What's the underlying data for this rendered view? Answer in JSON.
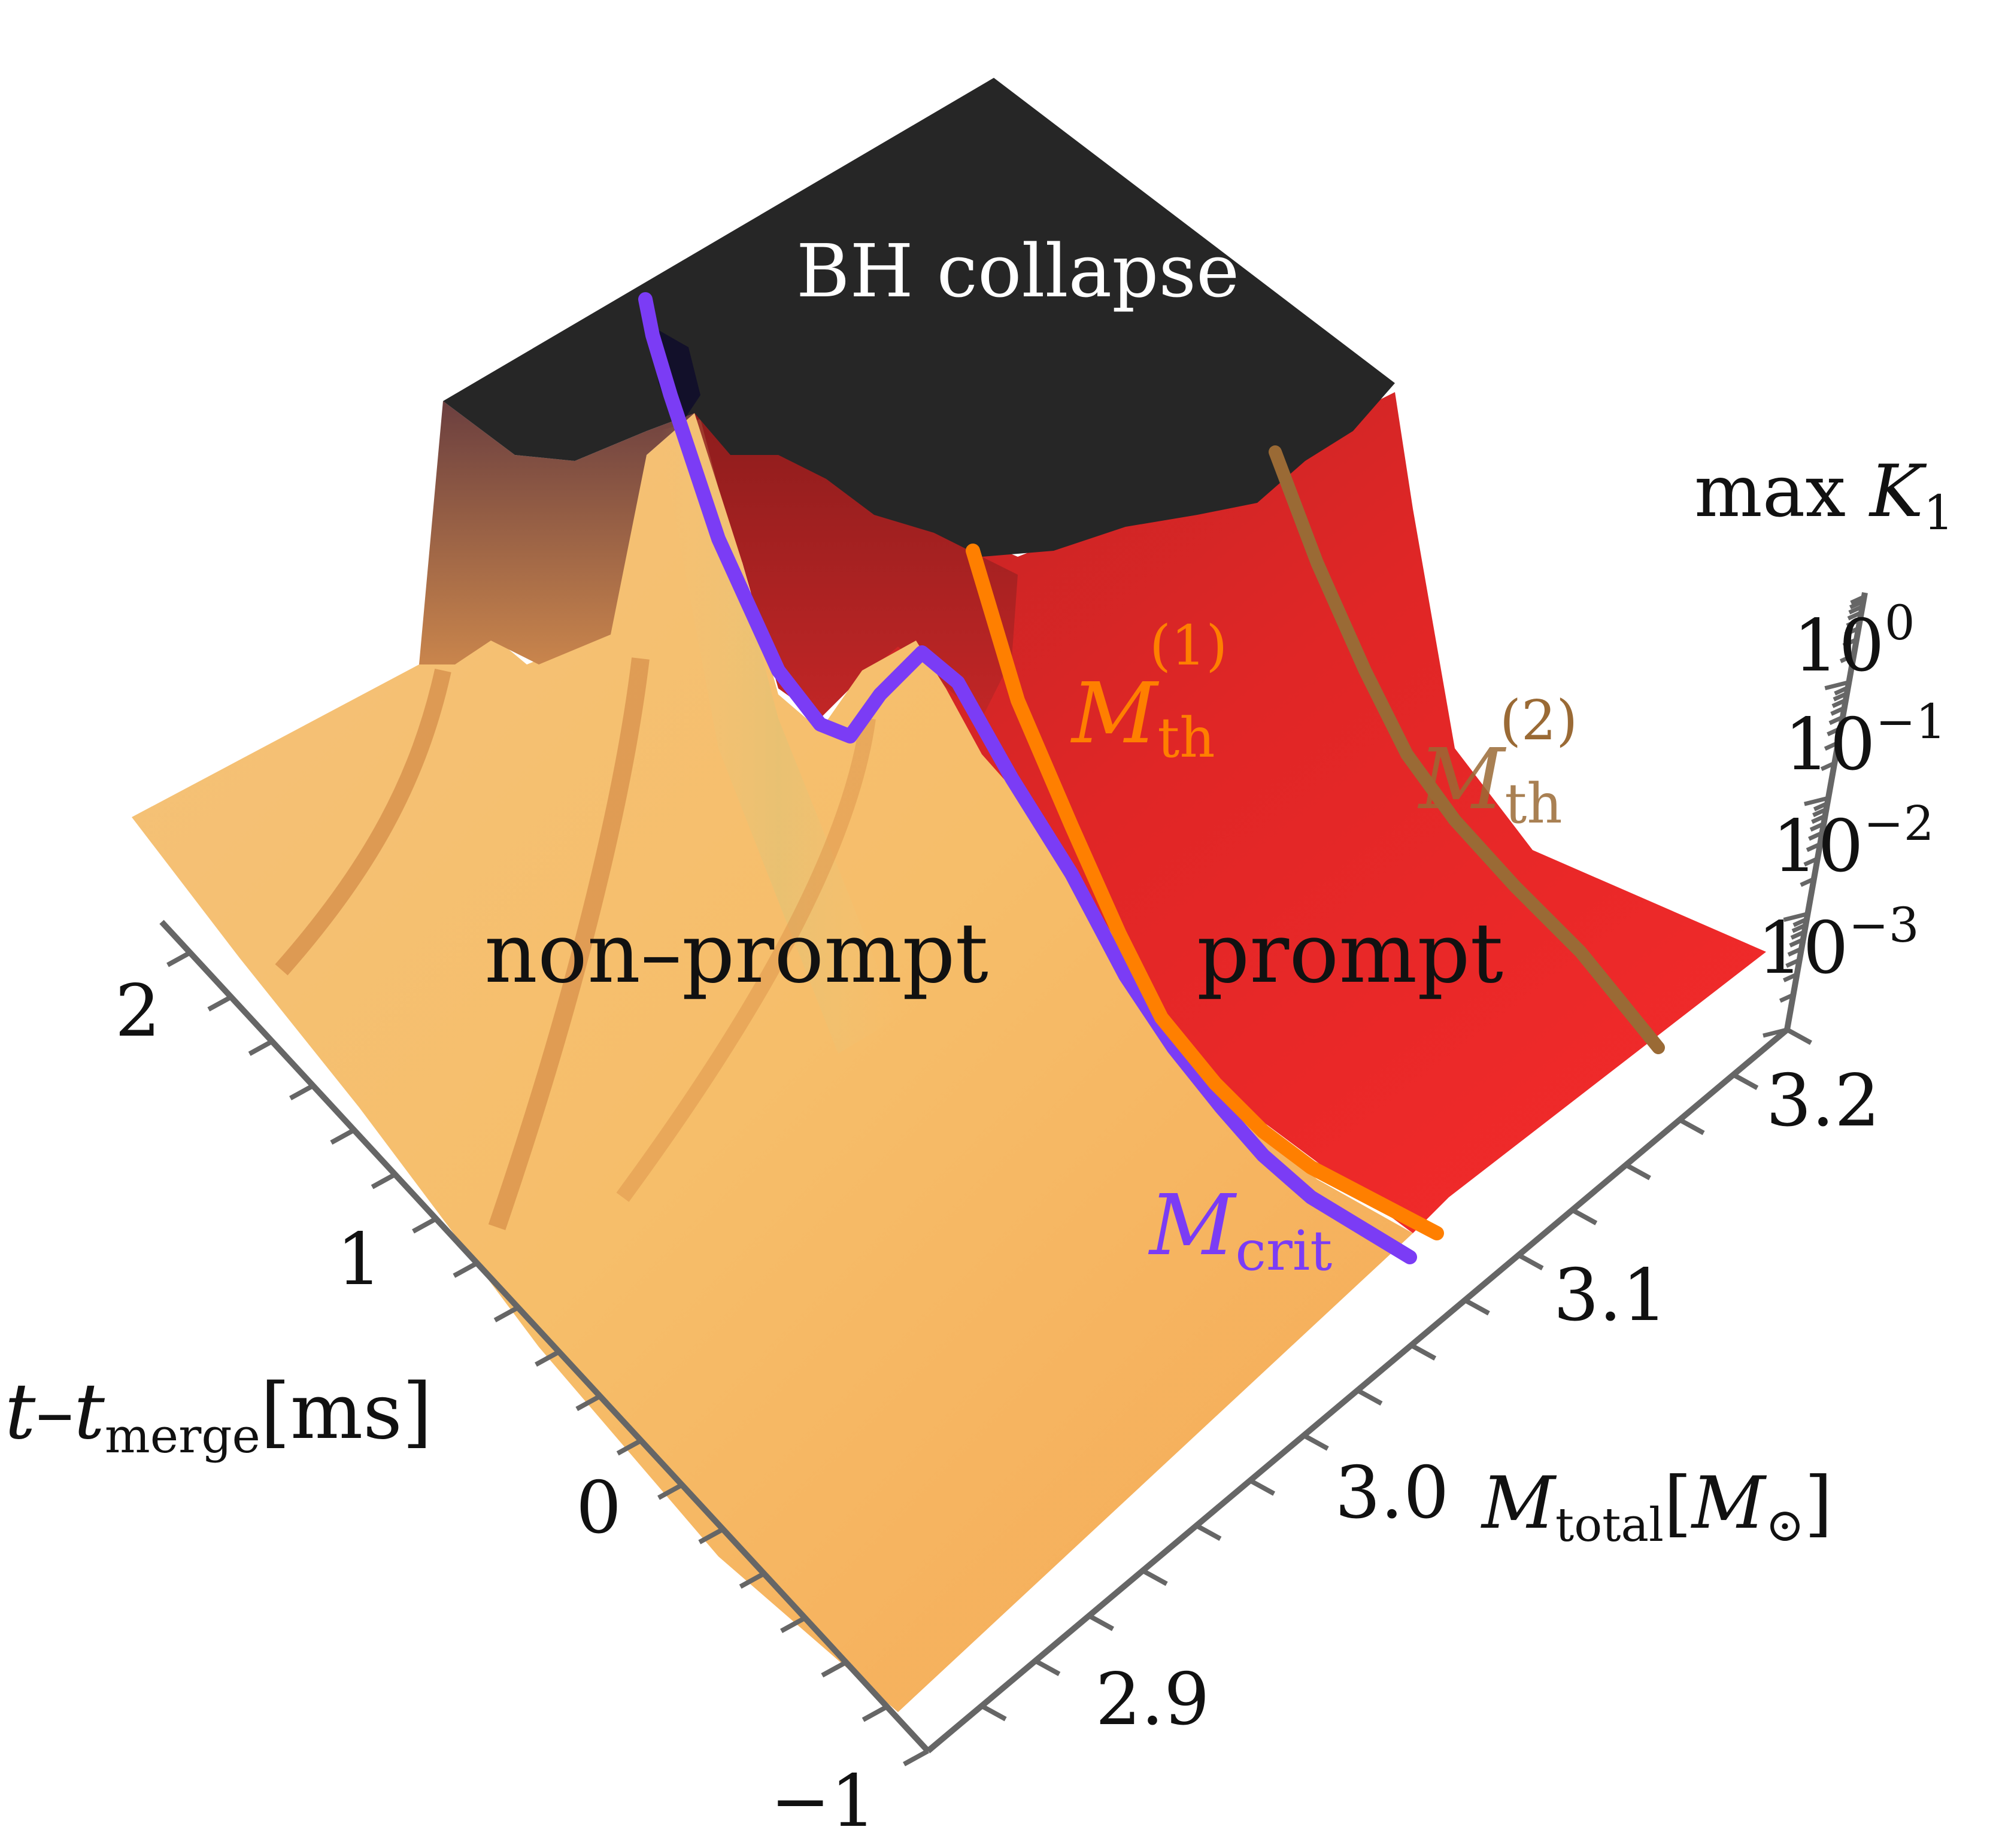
{
  "chart_data": {
    "type": "surface-3d",
    "title": "",
    "zlabel": {
      "prefix": "max",
      "symbol": "K",
      "sub": "1"
    },
    "z_scale": "log",
    "z_ticks": [
      {
        "base": "10",
        "exp": "0"
      },
      {
        "base": "10",
        "exp": "−1"
      },
      {
        "base": "10",
        "exp": "−2"
      },
      {
        "base": "10",
        "exp": "−3"
      }
    ],
    "time_axis": {
      "sym": "t",
      "sub": "merge",
      "unit": "[ms]",
      "minus": "–",
      "ticks": [
        "2",
        "1",
        "0",
        "−1"
      ]
    },
    "mass_axis": {
      "sym": "M",
      "sub": "total",
      "unit_open": "[",
      "unit_sym": "M",
      "unit_sub": "⊙",
      "unit_close": "]",
      "ticks": [
        "2.9",
        "3.0",
        "3.1",
        "3.2"
      ]
    },
    "regions": {
      "collapse": "BH collapse",
      "nonprompt": "non–prompt",
      "prompt": "prompt"
    },
    "curves": [
      {
        "id": "crit",
        "name": {
          "sym": "M",
          "sub": "crit",
          "sup": ""
        },
        "color": "#7b3cf5"
      },
      {
        "id": "th1",
        "name": {
          "sym": "M",
          "sub": "th",
          "sup": "(1)"
        },
        "color": "#ff7f00"
      },
      {
        "id": "th2",
        "name": {
          "sym": "M",
          "sub": "th",
          "sup": "(2)"
        },
        "color": "#9a6a35"
      }
    ],
    "colors": {
      "nonprompt": "#f6b865",
      "prompt": "#ee2a2a",
      "collapse": "#262626",
      "axis": "#666666"
    }
  }
}
